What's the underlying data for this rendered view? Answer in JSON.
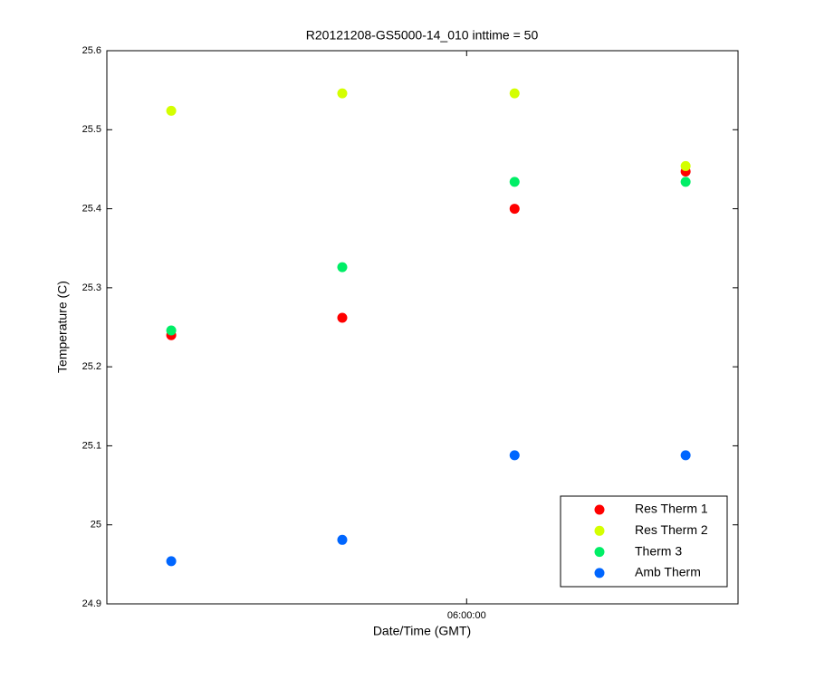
{
  "chart_data": {
    "type": "scatter",
    "title": "R20121208-GS5000-14_010 inttime = 50",
    "xlabel": "Date/Time (GMT)",
    "ylabel": "Temperature (C)",
    "x": [
      5.532,
      5.803,
      6.076,
      6.347
    ],
    "xlim": [
      5.43,
      6.43
    ],
    "xticks": [
      {
        "value": 6.0,
        "label": "06:00:00"
      }
    ],
    "ylim": [
      24.9,
      25.6
    ],
    "yticks": [
      24.9,
      25,
      25.1,
      25.2,
      25.3,
      25.4,
      25.5,
      25.6
    ],
    "legend": "lower right",
    "series": [
      {
        "name": "Res Therm 1",
        "color": "#ff0000",
        "values": [
          25.24,
          25.262,
          25.4,
          25.447
        ]
      },
      {
        "name": "Res Therm 2",
        "color": "#d4ff00",
        "values": [
          25.524,
          25.546,
          25.546,
          25.454
        ]
      },
      {
        "name": "Therm 3",
        "color": "#00ee66",
        "values": [
          25.246,
          25.326,
          25.434,
          25.434
        ]
      },
      {
        "name": "Amb Therm",
        "color": "#0066ff",
        "values": [
          24.954,
          24.981,
          25.088,
          25.088
        ]
      }
    ]
  }
}
